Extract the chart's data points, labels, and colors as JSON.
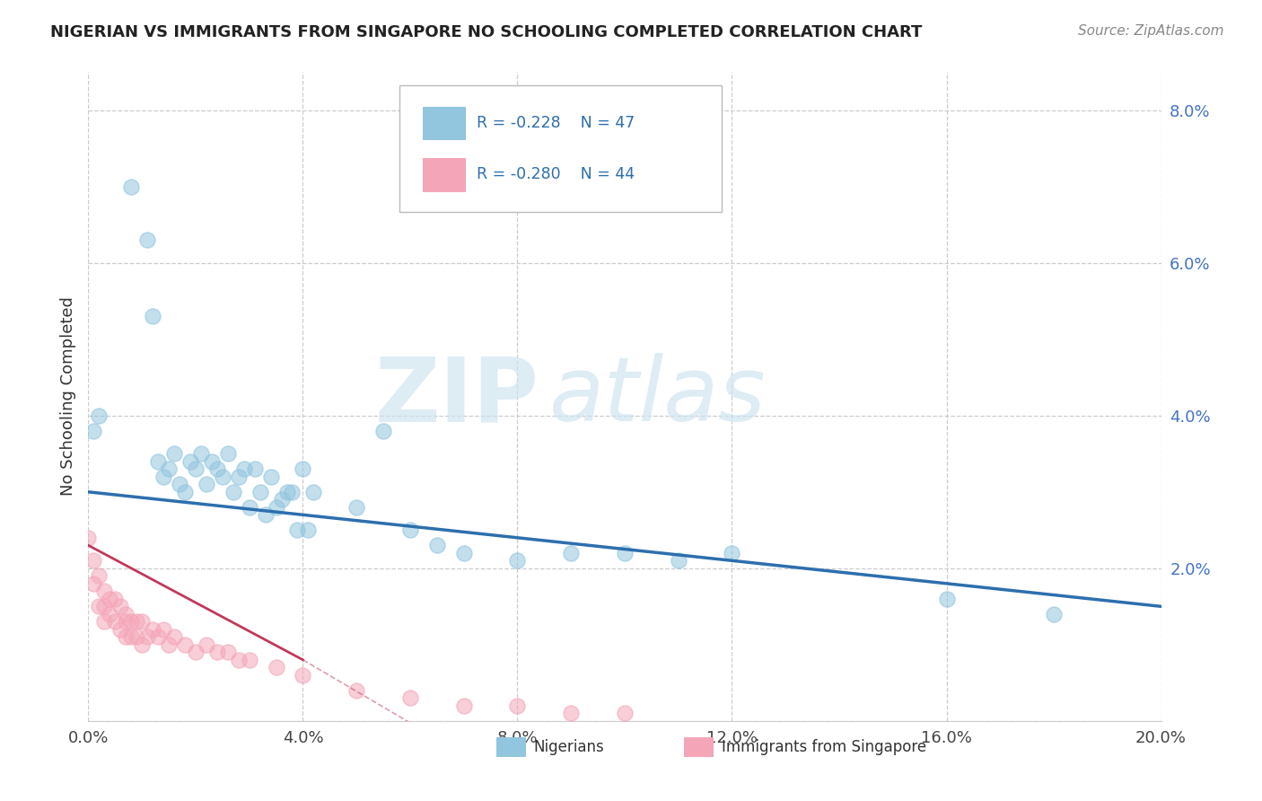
{
  "title": "NIGERIAN VS IMMIGRANTS FROM SINGAPORE NO SCHOOLING COMPLETED CORRELATION CHART",
  "source": "Source: ZipAtlas.com",
  "ylabel": "No Schooling Completed",
  "xlim": [
    0.0,
    0.2
  ],
  "ylim": [
    0.0,
    0.085
  ],
  "xtick_positions": [
    0.0,
    0.04,
    0.08,
    0.12,
    0.16,
    0.2
  ],
  "xtick_labels": [
    "0.0%",
    "4.0%",
    "8.0%",
    "12.0%",
    "16.0%",
    "20.0%"
  ],
  "ytick_positions": [
    0.0,
    0.02,
    0.04,
    0.06,
    0.08
  ],
  "ytick_labels": [
    "",
    "2.0%",
    "4.0%",
    "6.0%",
    "8.0%"
  ],
  "nigerian_R": -0.228,
  "nigerian_N": 47,
  "singapore_R": -0.28,
  "singapore_N": 44,
  "blue_color": "#92c5de",
  "pink_color": "#f4a6b8",
  "blue_line_color": "#2c6fad",
  "pink_line_color": "#c0395a",
  "watermark_zip": "ZIP",
  "watermark_atlas": "atlas",
  "legend_label_1": "Nigerians",
  "legend_label_2": "Immigrants from Singapore",
  "nigerian_x": [
    0.001,
    0.002,
    0.008,
    0.011,
    0.012,
    0.013,
    0.014,
    0.015,
    0.016,
    0.017,
    0.018,
    0.019,
    0.02,
    0.021,
    0.022,
    0.023,
    0.024,
    0.025,
    0.026,
    0.027,
    0.028,
    0.029,
    0.03,
    0.031,
    0.032,
    0.033,
    0.034,
    0.035,
    0.036,
    0.037,
    0.038,
    0.039,
    0.04,
    0.041,
    0.042,
    0.05,
    0.055,
    0.06,
    0.065,
    0.07,
    0.08,
    0.09,
    0.1,
    0.11,
    0.12,
    0.16,
    0.18
  ],
  "nigerian_y": [
    0.038,
    0.04,
    0.07,
    0.063,
    0.053,
    0.034,
    0.032,
    0.033,
    0.035,
    0.031,
    0.03,
    0.034,
    0.033,
    0.035,
    0.031,
    0.034,
    0.033,
    0.032,
    0.035,
    0.03,
    0.032,
    0.033,
    0.028,
    0.033,
    0.03,
    0.027,
    0.032,
    0.028,
    0.029,
    0.03,
    0.03,
    0.025,
    0.033,
    0.025,
    0.03,
    0.028,
    0.038,
    0.025,
    0.023,
    0.022,
    0.021,
    0.022,
    0.022,
    0.021,
    0.022,
    0.016,
    0.014
  ],
  "singapore_x": [
    0.0,
    0.001,
    0.001,
    0.002,
    0.002,
    0.003,
    0.003,
    0.003,
    0.004,
    0.004,
    0.005,
    0.005,
    0.006,
    0.006,
    0.007,
    0.007,
    0.007,
    0.008,
    0.008,
    0.009,
    0.009,
    0.01,
    0.01,
    0.011,
    0.012,
    0.013,
    0.014,
    0.015,
    0.016,
    0.018,
    0.02,
    0.022,
    0.024,
    0.026,
    0.028,
    0.03,
    0.035,
    0.04,
    0.05,
    0.06,
    0.07,
    0.08,
    0.09,
    0.1
  ],
  "singapore_y": [
    0.024,
    0.021,
    0.018,
    0.019,
    0.015,
    0.017,
    0.015,
    0.013,
    0.016,
    0.014,
    0.016,
    0.013,
    0.015,
    0.012,
    0.014,
    0.013,
    0.011,
    0.013,
    0.011,
    0.013,
    0.011,
    0.013,
    0.01,
    0.011,
    0.012,
    0.011,
    0.012,
    0.01,
    0.011,
    0.01,
    0.009,
    0.01,
    0.009,
    0.009,
    0.008,
    0.008,
    0.007,
    0.006,
    0.004,
    0.003,
    0.002,
    0.002,
    0.001,
    0.001
  ]
}
